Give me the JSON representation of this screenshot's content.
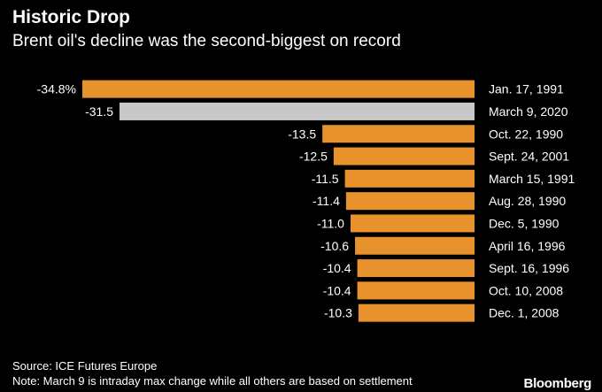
{
  "header": {
    "title": "Historic Drop",
    "subtitle": "Brent oil's decline was the second-biggest on record"
  },
  "chart_data": {
    "type": "bar",
    "orientation": "horizontal",
    "categories": [
      "Jan. 17, 1991",
      "March 9, 2020",
      "Oct. 22, 1990",
      "Sept. 24, 2001",
      "March 15, 1991",
      "Aug. 28, 1990",
      "Dec. 5, 1990",
      "April 16, 1996",
      "Sept. 16, 1996",
      "Oct. 10, 2008",
      "Dec. 1, 2008"
    ],
    "values": [
      -34.8,
      -31.5,
      -13.5,
      -12.5,
      -11.5,
      -11.4,
      -11.0,
      -10.6,
      -10.4,
      -10.4,
      -10.3
    ],
    "value_labels": [
      "-34.8%",
      "-31.5",
      "-13.5",
      "-12.5",
      "-11.5",
      "-11.4",
      "-11.0",
      "-10.6",
      "-10.4",
      "-10.4",
      "-10.3"
    ],
    "highlight_index": 1,
    "colors": {
      "bar": "#E8922D",
      "highlight": "#C8C8C8"
    },
    "xlim": [
      -34.8,
      0
    ],
    "grid": false,
    "legend": "none"
  },
  "footer": {
    "source": "Source: ICE Futures Europe",
    "note": "Note: March 9 is intraday max change while all others are based on settlement"
  },
  "brand": "Bloomberg"
}
